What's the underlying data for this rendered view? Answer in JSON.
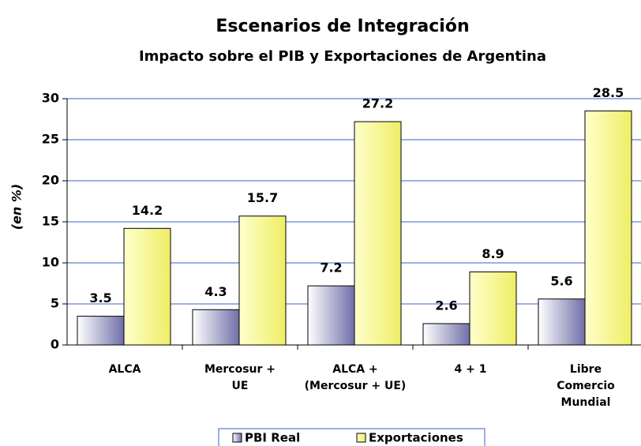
{
  "chart_data": {
    "type": "bar",
    "title": "Escenarios de Integración",
    "subtitle": "Impacto sobre el PIB y Exportaciones de Argentina",
    "y_label": "(en %)",
    "categories": [
      "ALCA",
      "Mercosur +\nUE",
      "ALCA +\n(Mercosur + UE)",
      "4 + 1",
      "Libre\nComercio\nMundial"
    ],
    "series": [
      {
        "name": "PBI Real",
        "color": "#9999cc",
        "values": [
          3.5,
          4.3,
          7.2,
          2.6,
          5.6
        ]
      },
      {
        "name": "Exportaciones",
        "color": "#ffff99",
        "values": [
          14.2,
          15.7,
          27.2,
          8.9,
          28.5
        ]
      }
    ],
    "ylim": [
      0,
      30
    ],
    "yticks": [
      0,
      5,
      10,
      15,
      20,
      25,
      30
    ],
    "grid": true,
    "legend": "bottom"
  }
}
